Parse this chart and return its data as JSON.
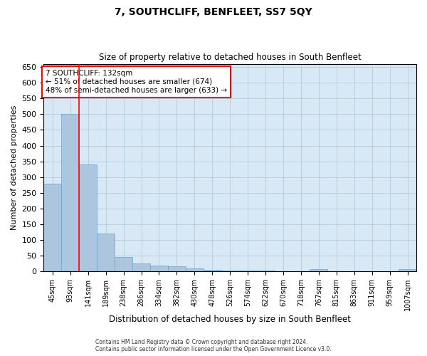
{
  "title": "7, SOUTHCLIFF, BENFLEET, SS7 5QY",
  "subtitle": "Size of property relative to detached houses in South Benfleet",
  "xlabel": "Distribution of detached houses by size in South Benfleet",
  "ylabel": "Number of detached properties",
  "categories": [
    "45sqm",
    "93sqm",
    "141sqm",
    "189sqm",
    "238sqm",
    "286sqm",
    "334sqm",
    "382sqm",
    "430sqm",
    "478sqm",
    "526sqm",
    "574sqm",
    "622sqm",
    "670sqm",
    "718sqm",
    "767sqm",
    "815sqm",
    "863sqm",
    "911sqm",
    "959sqm",
    "1007sqm"
  ],
  "values": [
    280,
    500,
    340,
    120,
    45,
    25,
    20,
    17,
    10,
    5,
    3,
    3,
    2,
    0,
    0,
    8,
    0,
    0,
    0,
    0,
    8
  ],
  "bar_color": "#adc6e0",
  "bar_edge_color": "#6ba3c8",
  "grid_color": "#b8cfe0",
  "background_color": "#d8e8f4",
  "vline_x": 1.5,
  "vline_color": "red",
  "annotation_text": "7 SOUTHCLIFF: 132sqm\n← 51% of detached houses are smaller (674)\n48% of semi-detached houses are larger (633) →",
  "annotation_box_color": "white",
  "annotation_box_edge": "red",
  "ylim": [
    0,
    660
  ],
  "yticks": [
    0,
    50,
    100,
    150,
    200,
    250,
    300,
    350,
    400,
    450,
    500,
    550,
    600,
    650
  ],
  "footer_line1": "Contains HM Land Registry data © Crown copyright and database right 2024.",
  "footer_line2": "Contains public sector information licensed under the Open Government Licence v3.0."
}
